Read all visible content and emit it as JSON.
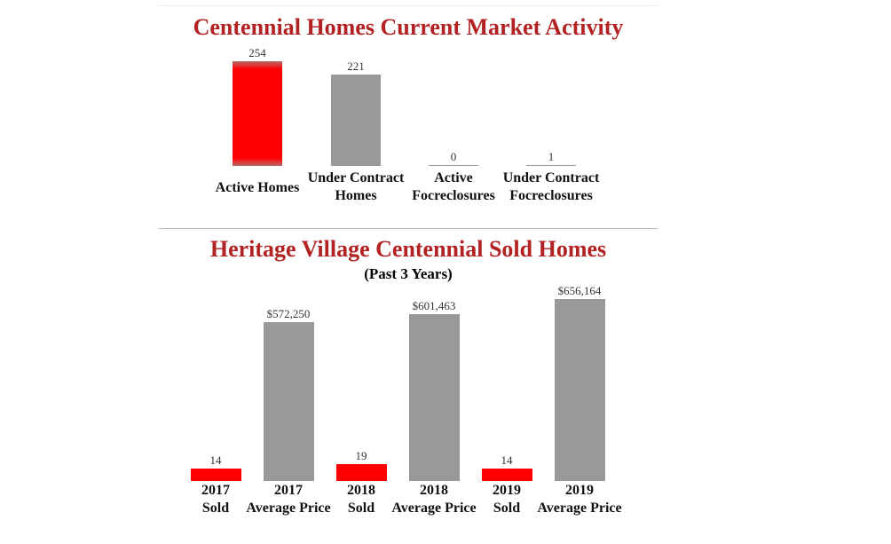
{
  "chart_data": [
    {
      "type": "bar",
      "title": "Centennial Homes Current Market Activity",
      "categories": [
        {
          "lines": [
            "Active Homes"
          ]
        },
        {
          "lines": [
            "Under Contract",
            "Homes"
          ]
        },
        {
          "lines": [
            "Active",
            "Focreclosures"
          ]
        },
        {
          "lines": [
            "Under Contract",
            "Focreclosures"
          ]
        }
      ],
      "values": [
        254,
        221,
        0,
        1
      ],
      "value_labels": [
        "254",
        "221",
        "0",
        "1"
      ],
      "colors": [
        "#ff0000",
        "#999999",
        "#999999",
        "#999999"
      ],
      "ylim": [
        0,
        254
      ]
    },
    {
      "type": "bar",
      "title": "Heritage Village Centennial Sold Homes",
      "subtitle": "(Past 3 Years)",
      "categories": [
        {
          "lines": [
            "2017",
            "Sold"
          ]
        },
        {
          "lines": [
            "2017",
            "Average Price"
          ]
        },
        {
          "lines": [
            "2018",
            "Sold"
          ]
        },
        {
          "lines": [
            "2018",
            "Average Price"
          ]
        },
        {
          "lines": [
            "2019",
            "Sold"
          ]
        },
        {
          "lines": [
            "2019",
            "Average Price"
          ]
        }
      ],
      "values": [
        14,
        572250,
        19,
        601463,
        14,
        656164
      ],
      "value_labels": [
        "14",
        "$572,250",
        "19",
        "$601,463",
        "14",
        "$656,164"
      ],
      "colors": [
        "#ff0000",
        "#999999",
        "#ff0000",
        "#999999",
        "#ff0000",
        "#999999"
      ],
      "series_kind": [
        "count",
        "price",
        "count",
        "price",
        "count",
        "price"
      ],
      "ylim": [
        0,
        656164
      ]
    }
  ]
}
